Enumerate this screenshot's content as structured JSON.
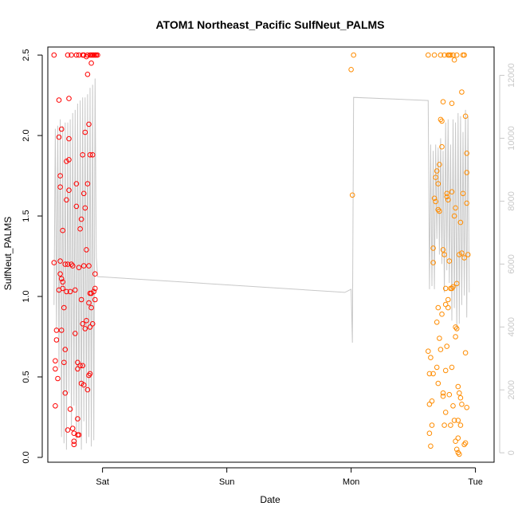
{
  "chart_data": {
    "type": "scatter",
    "title": "ATOM1 Northeast_Pacific SulfNeut_PALMS",
    "xlabel": "Date",
    "ylabel": "SulfNeut_PALMS",
    "x_unit": "days",
    "xlim": [
      -0.44,
      3.15
    ],
    "ylim": [
      -0.03,
      2.55
    ],
    "x_ticks": [
      {
        "value": 0,
        "label": "Sat"
      },
      {
        "value": 1,
        "label": "Sun"
      },
      {
        "value": 2,
        "label": "Mon"
      },
      {
        "value": 3,
        "label": "Tue"
      }
    ],
    "y_ticks": [
      {
        "value": 0.0,
        "label": "0.0"
      },
      {
        "value": 0.5,
        "label": "0.5"
      },
      {
        "value": 1.0,
        "label": "1.0"
      },
      {
        "value": 1.5,
        "label": "1.5"
      },
      {
        "value": 2.0,
        "label": "2.0"
      },
      {
        "value": 2.5,
        "label": "2.5"
      }
    ],
    "y2_ticks": [
      {
        "value": 0,
        "label": "0"
      },
      {
        "value": 2000,
        "label": "2000"
      },
      {
        "value": 4000,
        "label": "4000"
      },
      {
        "value": 6000,
        "label": "6000"
      },
      {
        "value": 8000,
        "label": "8000"
      },
      {
        "value": 10000,
        "label": "10000"
      },
      {
        "value": 12000,
        "label": "12000"
      }
    ],
    "y2lim": [
      -300,
      12900
    ],
    "colors": {
      "series1": "#ff0000",
      "series2": "#ff8c00",
      "altitude": "#c8c8c8"
    },
    "series": [
      {
        "color": "#ff0000",
        "points": [
          [
            -0.39,
            2.5
          ],
          [
            -0.39,
            1.21
          ],
          [
            -0.38,
            0.32
          ],
          [
            -0.38,
            0.55
          ],
          [
            -0.38,
            0.6
          ],
          [
            -0.37,
            0.73
          ],
          [
            -0.37,
            0.79
          ],
          [
            -0.36,
            0.49
          ],
          [
            -0.35,
            1.04
          ],
          [
            -0.35,
            1.99
          ],
          [
            -0.35,
            2.22
          ],
          [
            -0.34,
            1.75
          ],
          [
            -0.34,
            1.68
          ],
          [
            -0.34,
            1.22
          ],
          [
            -0.34,
            1.14
          ],
          [
            -0.33,
            1.11
          ],
          [
            -0.33,
            0.79
          ],
          [
            -0.33,
            2.04
          ],
          [
            -0.32,
            1.09
          ],
          [
            -0.32,
            1.41
          ],
          [
            -0.32,
            1.05
          ],
          [
            -0.31,
            0.93
          ],
          [
            -0.31,
            0.59
          ],
          [
            -0.3,
            0.4
          ],
          [
            -0.3,
            0.67
          ],
          [
            -0.3,
            1.2
          ],
          [
            -0.29,
            1.84
          ],
          [
            -0.29,
            1.6
          ],
          [
            -0.29,
            1.03
          ],
          [
            -0.28,
            2.5
          ],
          [
            -0.28,
            1.2
          ],
          [
            -0.28,
            0.17
          ],
          [
            -0.27,
            1.66
          ],
          [
            -0.27,
            1.85
          ],
          [
            -0.27,
            2.23
          ],
          [
            -0.27,
            1.98
          ],
          [
            -0.26,
            1.03
          ],
          [
            -0.26,
            0.3
          ],
          [
            -0.25,
            2.5
          ],
          [
            -0.25,
            1.2
          ],
          [
            -0.24,
            1.19
          ],
          [
            -0.24,
            0.18
          ],
          [
            -0.23,
            0.1
          ],
          [
            -0.23,
            0.08
          ],
          [
            -0.23,
            0.15
          ],
          [
            -0.22,
            1.04
          ],
          [
            -0.22,
            0.77
          ],
          [
            -0.21,
            2.5
          ],
          [
            -0.21,
            1.7
          ],
          [
            -0.21,
            1.56
          ],
          [
            -0.2,
            0.59
          ],
          [
            -0.2,
            0.24
          ],
          [
            -0.2,
            0.14
          ],
          [
            -0.19,
            2.5
          ],
          [
            -0.19,
            1.18
          ],
          [
            -0.19,
            0.14
          ],
          [
            -0.18,
            1.42
          ],
          [
            -0.17,
            1.48
          ],
          [
            -0.17,
            0.98
          ],
          [
            -0.16,
            2.5
          ],
          [
            -0.16,
            1.88
          ],
          [
            -0.16,
            0.83
          ],
          [
            -0.16,
            0.57
          ],
          [
            -0.15,
            2.5
          ],
          [
            -0.15,
            1.64
          ],
          [
            -0.15,
            1.19
          ],
          [
            -0.15,
            0.45
          ],
          [
            -0.14,
            2.02
          ],
          [
            -0.14,
            1.55
          ],
          [
            -0.14,
            0.8
          ],
          [
            -0.13,
            2.49
          ],
          [
            -0.13,
            1.29
          ],
          [
            -0.13,
            0.85
          ],
          [
            -0.12,
            2.5
          ],
          [
            -0.12,
            1.7
          ],
          [
            -0.12,
            0.42
          ],
          [
            -0.11,
            2.07
          ],
          [
            -0.11,
            1.19
          ],
          [
            -0.11,
            0.96
          ],
          [
            -0.1,
            2.5
          ],
          [
            -0.1,
            1.88
          ],
          [
            -0.1,
            0.52
          ],
          [
            -0.1,
            0.81
          ],
          [
            -0.09,
            2.45
          ],
          [
            -0.09,
            1.02
          ],
          [
            -0.09,
            0.93
          ],
          [
            -0.08,
            2.5
          ],
          [
            -0.08,
            1.88
          ],
          [
            -0.08,
            0.83
          ],
          [
            -0.07,
            2.5
          ],
          [
            -0.07,
            1.03
          ],
          [
            -0.06,
            2.5
          ],
          [
            -0.06,
            1.14
          ],
          [
            -0.06,
            1.05
          ],
          [
            -0.06,
            0.98
          ],
          [
            -0.05,
            2.5
          ],
          [
            -0.04,
            2.5
          ],
          [
            -0.12,
            2.38
          ],
          [
            -0.11,
            0.51
          ],
          [
            -0.09,
            2.5
          ],
          [
            -0.1,
            1.02
          ],
          [
            -0.2,
            0.55
          ],
          [
            -0.18,
            0.57
          ],
          [
            -0.17,
            0.46
          ]
        ]
      },
      {
        "color": "#ff8c00",
        "points": [
          [
            2.0,
            2.41
          ],
          [
            2.01,
            1.63
          ],
          [
            2.02,
            2.5
          ],
          [
            2.62,
            2.5
          ],
          [
            2.62,
            0.66
          ],
          [
            2.63,
            0.52
          ],
          [
            2.63,
            0.33
          ],
          [
            2.63,
            0.15
          ],
          [
            2.64,
            0.07
          ],
          [
            2.64,
            0.62
          ],
          [
            2.65,
            0.2
          ],
          [
            2.65,
            0.35
          ],
          [
            2.66,
            1.3
          ],
          [
            2.66,
            1.21
          ],
          [
            2.66,
            0.52
          ],
          [
            2.67,
            2.5
          ],
          [
            2.67,
            1.61
          ],
          [
            2.68,
            1.74
          ],
          [
            2.68,
            1.59
          ],
          [
            2.69,
            1.78
          ],
          [
            2.69,
            0.84
          ],
          [
            2.69,
            0.56
          ],
          [
            2.7,
            1.54
          ],
          [
            2.7,
            1.7
          ],
          [
            2.7,
            0.93
          ],
          [
            2.71,
            1.82
          ],
          [
            2.71,
            1.53
          ],
          [
            2.71,
            0.74
          ],
          [
            2.72,
            2.5
          ],
          [
            2.72,
            2.1
          ],
          [
            2.72,
            0.67
          ],
          [
            2.73,
            2.09
          ],
          [
            2.73,
            1.93
          ],
          [
            2.73,
            0.89
          ],
          [
            2.74,
            0.4
          ],
          [
            2.74,
            0.38
          ],
          [
            2.75,
            2.5
          ],
          [
            2.75,
            1.26
          ],
          [
            2.75,
            0.2
          ],
          [
            2.76,
            0.95
          ],
          [
            2.76,
            0.54
          ],
          [
            2.76,
            0.28
          ],
          [
            2.77,
            1.64
          ],
          [
            2.77,
            1.62
          ],
          [
            2.77,
            0.69
          ],
          [
            2.78,
            2.5
          ],
          [
            2.78,
            1.6
          ],
          [
            2.78,
            0.93
          ],
          [
            2.79,
            2.5
          ],
          [
            2.79,
            1.22
          ],
          [
            2.79,
            0.39
          ],
          [
            2.8,
            2.5
          ],
          [
            2.8,
            1.05
          ],
          [
            2.8,
            0.2
          ],
          [
            2.81,
            2.2
          ],
          [
            2.81,
            1.05
          ],
          [
            2.81,
            0.56
          ],
          [
            2.82,
            2.5
          ],
          [
            2.82,
            1.06
          ],
          [
            2.82,
            0.32
          ],
          [
            2.83,
            2.47
          ],
          [
            2.83,
            1.5
          ],
          [
            2.83,
            0.23
          ],
          [
            2.84,
            1.55
          ],
          [
            2.84,
            0.81
          ],
          [
            2.84,
            0.1
          ],
          [
            2.85,
            2.5
          ],
          [
            2.85,
            1.08
          ],
          [
            2.85,
            0.05
          ],
          [
            2.86,
            0.44
          ],
          [
            2.86,
            0.03
          ],
          [
            2.87,
            1.26
          ],
          [
            2.87,
            0.4
          ],
          [
            2.88,
            1.46
          ],
          [
            2.88,
            0.2
          ],
          [
            2.89,
            2.27
          ],
          [
            2.89,
            1.27
          ],
          [
            2.89,
            0.33
          ],
          [
            2.9,
            2.5
          ],
          [
            2.9,
            1.64
          ],
          [
            2.91,
            2.5
          ],
          [
            2.91,
            1.24
          ],
          [
            2.92,
            2.12
          ],
          [
            2.92,
            0.09
          ],
          [
            2.93,
            1.89
          ],
          [
            2.93,
            1.58
          ],
          [
            2.93,
            0.31
          ],
          [
            2.93,
            1.77
          ],
          [
            2.94,
            1.26
          ],
          [
            2.92,
            0.65
          ],
          [
            2.86,
            0.12
          ],
          [
            2.86,
            0.23
          ],
          [
            2.84,
            0.75
          ],
          [
            2.85,
            0.8
          ],
          [
            2.87,
            0.02
          ],
          [
            2.7,
            0.46
          ],
          [
            2.74,
            1.29
          ],
          [
            2.78,
            0.98
          ],
          [
            2.88,
            0.37
          ],
          [
            2.91,
            0.08
          ],
          [
            2.74,
            2.21
          ],
          [
            2.81,
            1.65
          ],
          [
            2.76,
            1.05
          ]
        ]
      }
    ],
    "altitude_trace": [
      [
        -0.39,
        4700
      ],
      [
        -0.38,
        10300
      ],
      [
        -0.37,
        3900
      ],
      [
        -0.36,
        10400
      ],
      [
        -0.35,
        2700
      ],
      [
        -0.34,
        10600
      ],
      [
        -0.33,
        500
      ],
      [
        -0.32,
        10400
      ],
      [
        -0.31,
        300
      ],
      [
        -0.3,
        10500
      ],
      [
        -0.29,
        100
      ],
      [
        -0.28,
        10500
      ],
      [
        -0.27,
        1900
      ],
      [
        -0.26,
        10600
      ],
      [
        -0.25,
        800
      ],
      [
        -0.24,
        10800
      ],
      [
        -0.23,
        1500
      ],
      [
        -0.22,
        10900
      ],
      [
        -0.21,
        200
      ],
      [
        -0.2,
        11100
      ],
      [
        -0.19,
        600
      ],
      [
        -0.18,
        11200
      ],
      [
        -0.17,
        100
      ],
      [
        -0.16,
        11300
      ],
      [
        -0.15,
        1000
      ],
      [
        -0.14,
        11300
      ],
      [
        -0.13,
        300
      ],
      [
        -0.12,
        11400
      ],
      [
        -0.11,
        500
      ],
      [
        -0.1,
        11600
      ],
      [
        -0.09,
        200
      ],
      [
        -0.08,
        11700
      ],
      [
        -0.07,
        400
      ],
      [
        -0.06,
        11900
      ],
      [
        -0.05,
        6200
      ],
      [
        -0.04,
        5600
      ],
      [
        1.95,
        5100
      ],
      [
        2.0,
        5200
      ],
      [
        2.01,
        3500
      ],
      [
        2.02,
        11300
      ],
      [
        2.62,
        11200
      ],
      [
        2.63,
        5200
      ],
      [
        2.64,
        9800
      ],
      [
        2.65,
        5300
      ],
      [
        2.66,
        9600
      ],
      [
        2.67,
        5200
      ],
      [
        2.68,
        9800
      ],
      [
        2.69,
        6800
      ],
      [
        2.7,
        9700
      ],
      [
        2.71,
        6300
      ],
      [
        2.72,
        10000
      ],
      [
        2.73,
        6000
      ],
      [
        2.74,
        9600
      ],
      [
        2.75,
        5100
      ],
      [
        2.76,
        10500
      ],
      [
        2.77,
        5800
      ],
      [
        2.78,
        10600
      ],
      [
        2.79,
        5400
      ],
      [
        2.8,
        9800
      ],
      [
        2.81,
        4200
      ],
      [
        2.82,
        10600
      ],
      [
        2.83,
        4600
      ],
      [
        2.84,
        10500
      ],
      [
        2.85,
        3900
      ],
      [
        2.86,
        10800
      ],
      [
        2.87,
        4100
      ],
      [
        2.88,
        10700
      ],
      [
        2.89,
        4700
      ],
      [
        2.9,
        10200
      ],
      [
        2.91,
        5000
      ],
      [
        2.92,
        10900
      ],
      [
        2.93,
        4300
      ],
      [
        2.94,
        10700
      ],
      [
        2.95,
        5100
      ]
    ]
  }
}
